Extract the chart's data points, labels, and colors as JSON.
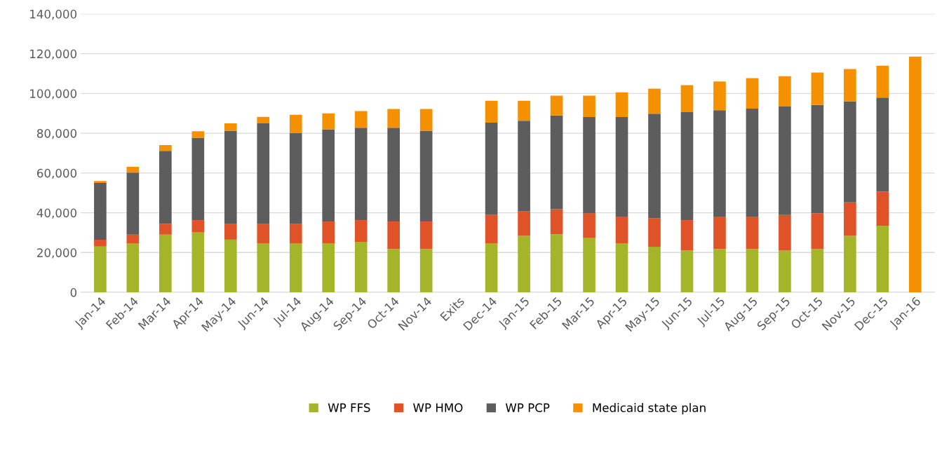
{
  "chart_data": {
    "type": "bar",
    "stacked": true,
    "categories": [
      "Jan-14",
      "Feb-14",
      "Mar-14",
      "Apr-14",
      "May-14",
      "Jun-14",
      "Jul-14",
      "Aug-14",
      "Sep-14",
      "Oct-14",
      "Nov-14",
      "Exits",
      "Dec-14",
      "Jan-15",
      "Feb-15",
      "Mar-15",
      "Apr-15",
      "May-15",
      "Jun-15",
      "Jul-15",
      "Aug-15",
      "Sep-15",
      "Oct-15",
      "Nov-15",
      "Dec-15",
      "Jan-16"
    ],
    "series": [
      {
        "name": "WP FFS",
        "color": "#a5b52a",
        "values": [
          23000,
          24700,
          29000,
          30100,
          26500,
          24700,
          24700,
          24700,
          25400,
          21800,
          21800,
          null,
          24700,
          28400,
          29200,
          27300,
          24700,
          22900,
          21000,
          21800,
          21800,
          21000,
          21800,
          28400,
          33500,
          null
        ]
      },
      {
        "name": "WP HMO",
        "color": "#e05227",
        "values": [
          3500,
          4300,
          5500,
          6200,
          8000,
          9800,
          9800,
          10900,
          10900,
          13800,
          13800,
          null,
          14300,
          12200,
          12600,
          12500,
          13400,
          14400,
          15300,
          16300,
          16300,
          17900,
          18000,
          16800,
          17100,
          null
        ]
      },
      {
        "name": "WP PCP",
        "color": "#5d5d5d",
        "values": [
          28500,
          31200,
          36600,
          41400,
          46800,
          50500,
          45700,
          46400,
          46500,
          47200,
          45700,
          null,
          46300,
          45700,
          47100,
          48300,
          50000,
          52500,
          54300,
          53500,
          54300,
          54500,
          54400,
          50900,
          47300,
          null
        ]
      },
      {
        "name": "Medicaid state plan",
        "color": "#f59100",
        "values": [
          1000,
          2900,
          2900,
          3300,
          3700,
          3200,
          9100,
          8000,
          8300,
          9400,
          10900,
          null,
          11000,
          10000,
          10000,
          10800,
          12500,
          12600,
          13600,
          14400,
          15300,
          15300,
          16300,
          16200,
          16100,
          118500
        ]
      }
    ],
    "ylim": [
      0,
      140000
    ],
    "yticks": [
      {
        "value": 0,
        "label": "0"
      },
      {
        "value": 20000,
        "label": "20,000"
      },
      {
        "value": 40000,
        "label": "40,000"
      },
      {
        "value": 60000,
        "label": "60,000"
      },
      {
        "value": 80000,
        "label": "80,000"
      },
      {
        "value": 100000,
        "label": "100,000"
      },
      {
        "value": 120000,
        "label": "120,000"
      },
      {
        "value": 140000,
        "label": "140,000"
      }
    ],
    "grid": "y",
    "legend": "bottom"
  }
}
